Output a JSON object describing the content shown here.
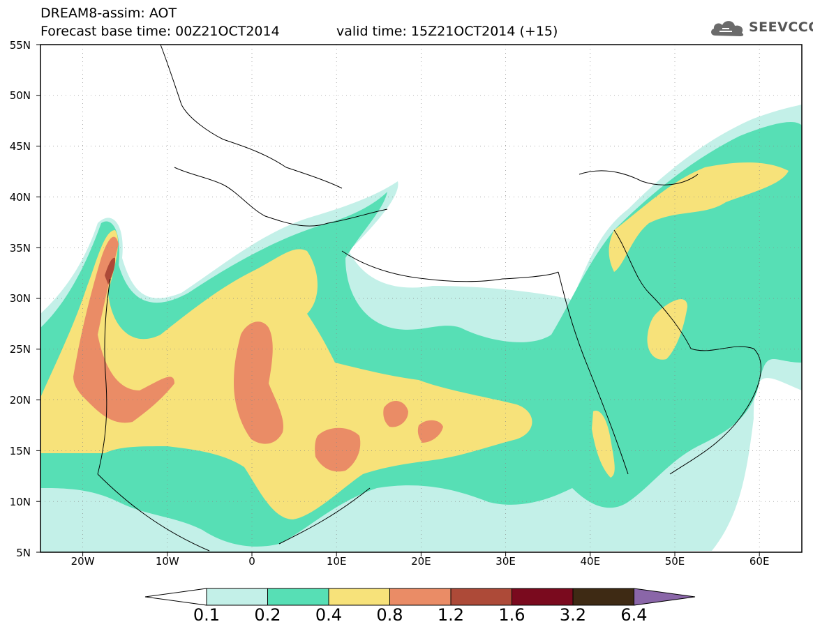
{
  "header": {
    "line1": "DREAM8-assim: AOT",
    "line2_base": "Forecast base time: 00Z21OCT2014",
    "line2_valid": "valid time: 15Z21OCT2014 (+15)"
  },
  "logo": {
    "text": "SEEVCCC",
    "icon": "cloud-icon"
  },
  "map": {
    "extent": {
      "lon": [
        -25,
        65
      ],
      "lat": [
        5,
        55
      ]
    },
    "lat_labels": [
      "55N",
      "50N",
      "45N",
      "40N",
      "35N",
      "30N",
      "25N",
      "20N",
      "15N",
      "10N",
      "5N"
    ],
    "lon_labels": [
      "20W",
      "10W",
      "0",
      "10E",
      "20E",
      "30E",
      "40E",
      "50E",
      "60E"
    ],
    "grid": true,
    "variable": "AOT"
  },
  "colorbar": {
    "colors": [
      "#ffffff",
      "#c3f0e8",
      "#57dfb5",
      "#f7e27a",
      "#ea8c66",
      "#ad4a38",
      "#7a0a1e",
      "#3e2a14",
      "#8a66a8"
    ],
    "labels": [
      "0.1",
      "0.2",
      "0.4",
      "0.8",
      "1.2",
      "1.6",
      "3.2",
      "6.4"
    ]
  }
}
